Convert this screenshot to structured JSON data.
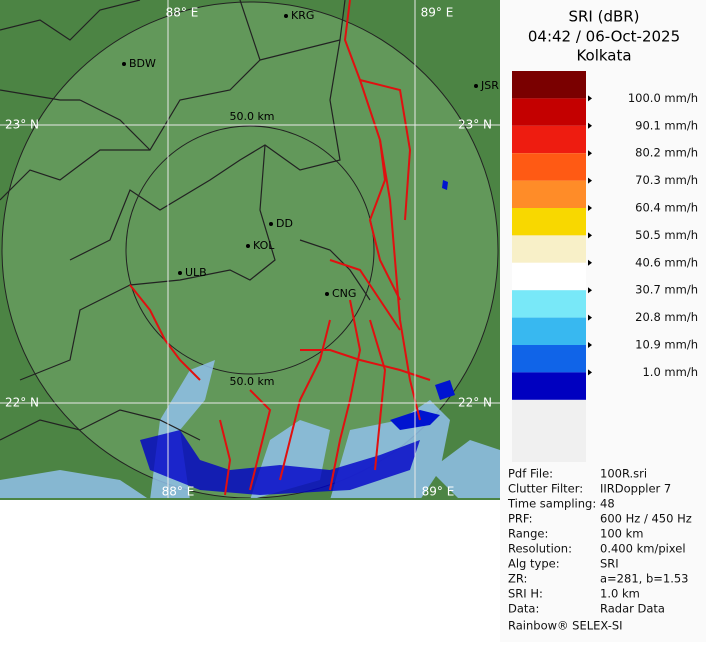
{
  "header": {
    "title": "SRI (dBR)",
    "datetime": "04:42 / 06-Oct-2025",
    "site": "Kolkata"
  },
  "map": {
    "grid_labels": [
      "88° E",
      "89° E",
      "23° N",
      "23° N",
      "22° N",
      "22° N",
      "88° E",
      "89° E"
    ],
    "range_labels": [
      "50.0 km",
      "50.0 km"
    ],
    "cities": [
      "KRG",
      "BDW",
      "JSR",
      "DD",
      "KOL",
      "ULB",
      "CNG"
    ]
  },
  "legend": {
    "colors": [
      "#7a0000",
      "#c40000",
      "#ee1c10",
      "#ff5a14",
      "#ff8c28",
      "#f8d800",
      "#f8f0c8",
      "#ffffff",
      "#78e8f8",
      "#38b8f0",
      "#1064e8",
      "#0000c0"
    ],
    "labels": [
      "100.0 mm/h",
      "90.1 mm/h",
      "80.2 mm/h",
      "70.3 mm/h",
      "60.4 mm/h",
      "50.5 mm/h",
      "40.6 mm/h",
      "30.7 mm/h",
      "20.8 mm/h",
      "10.9 mm/h",
      "1.0 mm/h"
    ]
  },
  "info": {
    "rows": [
      [
        "Pdf File:",
        "100R.sri"
      ],
      [
        "Clutter Filter:",
        "IIRDoppler 7"
      ],
      [
        "Time sampling:",
        "48"
      ],
      [
        "PRF:",
        "600 Hz / 450 Hz"
      ],
      [
        "Range:",
        "100 km"
      ],
      [
        "Resolution:",
        "0.400 km/pixel"
      ],
      [
        "Alg type:",
        "SRI"
      ],
      [
        "ZR:",
        "a=281, b=1.53"
      ],
      [
        "SRI H:",
        "1.0 km"
      ],
      [
        "Data:",
        "Radar Data"
      ]
    ],
    "footer": "Rainbow® SELEX-SI"
  }
}
